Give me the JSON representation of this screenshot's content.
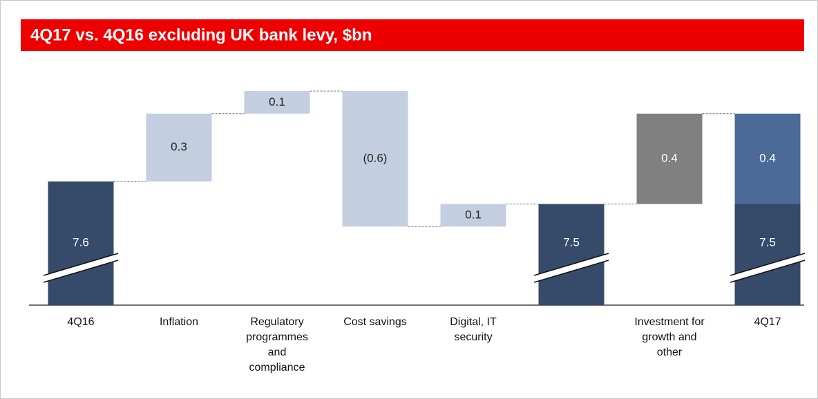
{
  "chart_data": {
    "type": "waterfall",
    "title": "4Q17 vs. 4Q16 excluding UK bank levy, $bn",
    "categories": [
      "4Q16",
      "Inflation",
      "Regulatory programmes and compliance",
      "Cost savings",
      "Digital, IT security",
      null,
      "Investment for growth and other",
      "4Q17"
    ],
    "measure": [
      "absolute",
      "relative",
      "relative",
      "relative",
      "relative",
      "absolute",
      "relative",
      "absolute"
    ],
    "values": [
      7.6,
      0.3,
      0.1,
      -0.6,
      0.1,
      7.5,
      0.4,
      [
        7.5,
        0.4
      ]
    ],
    "value_labels": [
      "7.6",
      "0.3",
      "0.1",
      "(0.6)",
      "0.1",
      "7.5",
      "0.4",
      [
        "7.5",
        "0.4"
      ]
    ],
    "colors": [
      "#364a69",
      "#c3cfe1",
      "#c3cfe1",
      "#c3cfe1",
      "#c3cfe1",
      "#364a69",
      "#808080",
      [
        "#364a69",
        "#4c6a98"
      ]
    ]
  }
}
